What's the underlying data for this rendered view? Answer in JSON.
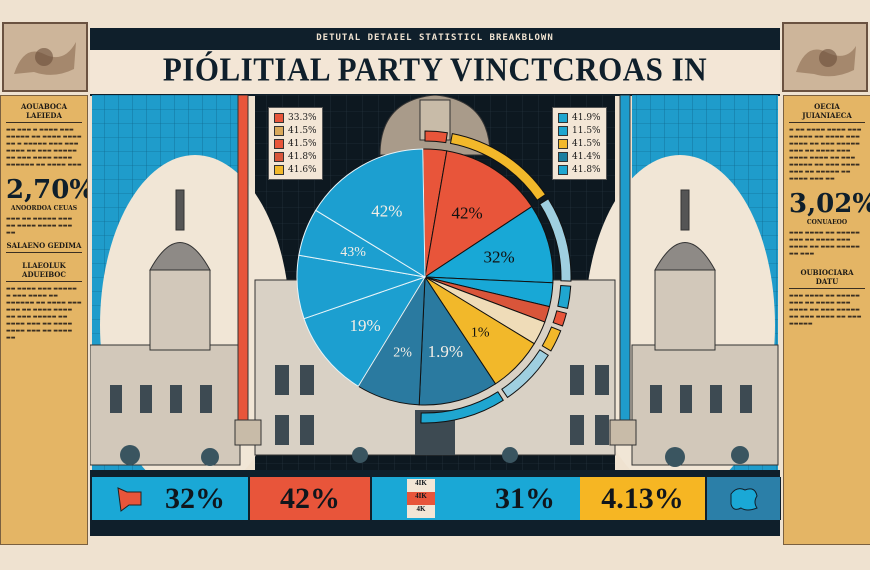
{
  "header": {
    "kicker": "DETUTAL DETAIEL STATISTICL BREAKBLOWN",
    "title": "PIÓLITIAL PARTY VINCTCROAS IN CITTUAD REAL."
  },
  "left_panel": {
    "heading": "AOUABOCA LAEIEDA",
    "big_value": "2,70%",
    "caption": "ANOORDOA CEUAS",
    "subheading_1": "SALAENO GEDIMA",
    "subheading_2": "LLAEOLUK ADUEIBOC"
  },
  "right_panel": {
    "heading": "OECIA JUIANIAECA",
    "big_value": "3,02%",
    "caption": "CONUAEOO",
    "subheading": "OUBIOCIARA DATU"
  },
  "legend_left": [
    {
      "label": "33.3%",
      "color": "#e8553a"
    },
    {
      "label": "41.5%",
      "color": "#d9a85a"
    },
    {
      "label": "41.5%",
      "color": "#e8553a"
    },
    {
      "label": "41.8%",
      "color": "#d9553a"
    },
    {
      "label": "41.6%",
      "color": "#f2b82a"
    }
  ],
  "legend_right": [
    {
      "label": "41.9%",
      "color": "#1fa6d0"
    },
    {
      "label": "11.5%",
      "color": "#1fa6d0"
    },
    {
      "label": "41.5%",
      "color": "#f2b82a"
    },
    {
      "label": "41.4%",
      "color": "#1c7fa0"
    },
    {
      "label": "41.8%",
      "color": "#1fa6d0"
    }
  ],
  "chart_data": {
    "type": "pie",
    "title": "",
    "slices": [
      {
        "label": "",
        "share": 3,
        "color": "#e8553a"
      },
      {
        "label": "42%",
        "share": 13,
        "color": "#e8553a"
      },
      {
        "label": "32%",
        "share": 10,
        "color": "#18a8d6"
      },
      {
        "label": "",
        "share": 3,
        "color": "#18a8d6"
      },
      {
        "label": "",
        "share": 2,
        "color": "#d9553a"
      },
      {
        "label": "",
        "share": 3,
        "color": "#efdcb8"
      },
      {
        "label": "1%",
        "share": 7,
        "color": "#f2b82a"
      },
      {
        "label": "1.9%",
        "share": 10,
        "color": "#2a7aa0"
      },
      {
        "label": "2%",
        "share": 8,
        "color": "#2a7aa0"
      },
      {
        "label": "19%",
        "share": 11,
        "color": "#1c9fd0"
      },
      {
        "label": "",
        "share": 8,
        "color": "#1c9fd0"
      },
      {
        "label": "43%",
        "share": 6,
        "color": "#1c9fd0"
      },
      {
        "label": "42%",
        "share": 16,
        "color": "#1c9fd0"
      }
    ]
  },
  "bottom_bar": [
    {
      "label": "32%",
      "color": "#1aa8d6"
    },
    {
      "label": "42%",
      "color": "#e8553a"
    },
    {
      "label": "31%",
      "color": "#1aa8d6"
    },
    {
      "label": "4.13%",
      "color": "#f6b623"
    }
  ],
  "bottom_grid": [
    "4IK",
    "4IK",
    "4K"
  ],
  "colors": {
    "navy": "#0f1f2b",
    "cream": "#efe2d0",
    "tan": "#e4b565",
    "cyan": "#1f9ccb",
    "red": "#e8553a"
  }
}
